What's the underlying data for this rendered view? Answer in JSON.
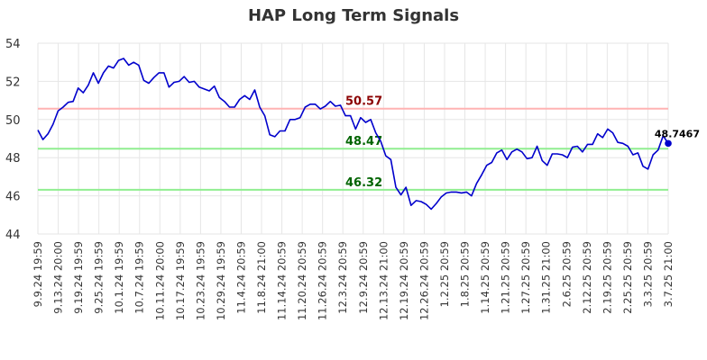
{
  "chart_data": {
    "type": "line",
    "title": "HAP Long Term Signals",
    "ylim": [
      44,
      54
    ],
    "yticks": [
      44,
      46,
      48,
      50,
      52,
      54
    ],
    "grid": true,
    "x_tick_labels": [
      "9.9.24 19:59",
      "9.13.24 20:00",
      "9.19.24 19:59",
      "9.25.24 19:59",
      "10.1.24 19:59",
      "10.7.24 19:59",
      "10.11.24 20:00",
      "10.17.24 19:59",
      "10.23.24 19:59",
      "10.29.24 19:59",
      "11.4.24 20:59",
      "11.8.24 21:00",
      "11.14.24 20:59",
      "11.20.24 20:59",
      "11.26.24 20:59",
      "12.3.24 20:59",
      "12.9.24 20:59",
      "12.13.24 21:00",
      "12.19.24 20:59",
      "12.26.24 20:59",
      "1.2.25 20:59",
      "1.8.25 20:59",
      "1.14.25 20:59",
      "1.21.25 20:59",
      "1.27.25 20:59",
      "1.31.25 21:00",
      "2.6.25 20:59",
      "2.12.25 20:59",
      "2.19.25 20:59",
      "2.25.25 20:59",
      "3.3.25 20:59",
      "3.7.25 21:00"
    ],
    "series": [
      {
        "color": "#0000cc",
        "values": [
          49.45,
          48.95,
          49.25,
          49.75,
          50.45,
          50.65,
          50.9,
          50.95,
          51.65,
          51.4,
          51.8,
          52.45,
          51.9,
          52.45,
          52.8,
          52.7,
          53.1,
          53.2,
          52.85,
          53.0,
          52.85,
          52.05,
          51.9,
          52.2,
          52.45,
          52.45,
          51.7,
          51.95,
          52.0,
          52.25,
          51.95,
          52.0,
          51.7,
          51.6,
          51.5,
          51.75,
          51.15,
          50.95,
          50.65,
          50.65,
          51.05,
          51.25,
          51.05,
          51.55,
          50.65,
          50.2,
          49.2,
          49.1,
          49.4,
          49.4,
          50.0,
          50.0,
          50.1,
          50.65,
          50.8,
          50.8,
          50.55,
          50.7,
          50.95,
          50.7,
          50.75,
          50.2,
          50.2,
          49.5,
          50.1,
          49.85,
          50.0,
          49.3,
          48.85,
          48.1,
          47.9,
          46.45,
          46.05,
          46.45,
          45.5,
          45.75,
          45.7,
          45.55,
          45.3,
          45.6,
          45.95,
          46.15,
          46.2,
          46.2,
          46.15,
          46.2,
          46.0,
          46.65,
          47.1,
          47.6,
          47.75,
          48.25,
          48.4,
          47.9,
          48.3,
          48.45,
          48.3,
          47.95,
          48.0,
          48.6,
          47.85,
          47.6,
          48.2,
          48.2,
          48.15,
          48.0,
          48.55,
          48.6,
          48.3,
          48.7,
          48.7,
          49.25,
          49.05,
          49.5,
          49.3,
          48.8,
          48.75,
          48.6,
          48.15,
          48.25,
          47.55,
          47.4,
          48.15,
          48.4,
          49.15,
          48.7467
        ]
      }
    ],
    "levels": [
      {
        "value": 50.57,
        "label": "50.57",
        "line_color": "#ffb3b3",
        "label_color": "#8b0000"
      },
      {
        "value": 48.47,
        "label": "48.47",
        "line_color": "#90ee90",
        "label_color": "#006400"
      },
      {
        "value": 46.32,
        "label": "46.32",
        "line_color": "#90ee90",
        "label_color": "#006400"
      }
    ],
    "last_value": {
      "value": 48.7467,
      "label": "48.7467",
      "marker_color": "#0000cc"
    }
  }
}
